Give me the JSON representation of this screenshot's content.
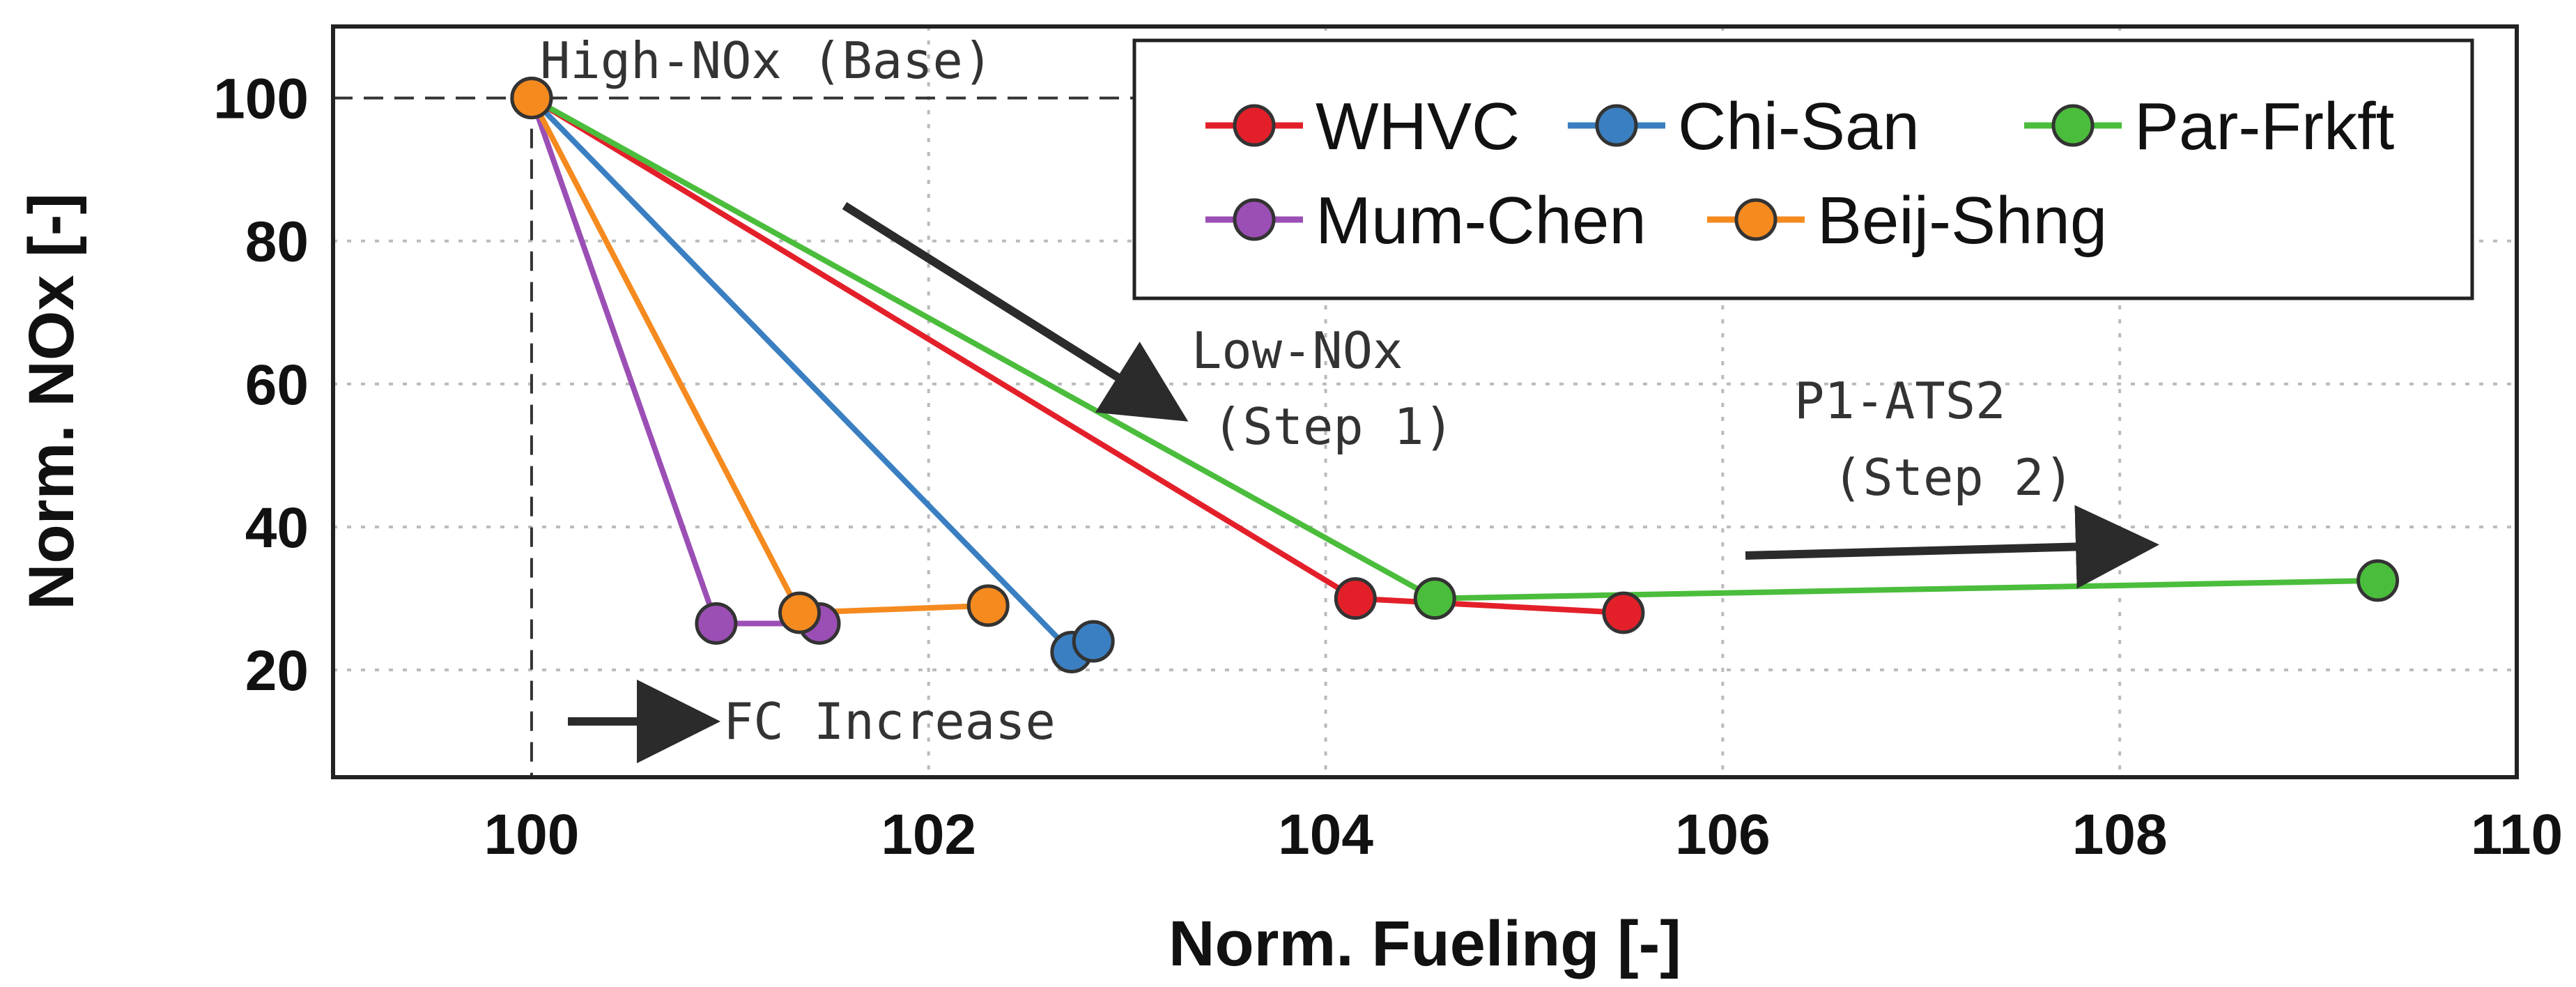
{
  "chart_data": {
    "type": "line",
    "title": "",
    "xlabel": "Norm. Fueling [-]",
    "ylabel": "Norm. NOx [-]",
    "xlim": [
      99,
      110
    ],
    "ylim": [
      5,
      110
    ],
    "xticks": [
      100,
      102,
      104,
      106,
      108,
      110
    ],
    "yticks": [
      20,
      40,
      60,
      80,
      100
    ],
    "grid": true,
    "legend_position": "top-right",
    "series": [
      {
        "name": "WHVC",
        "color": "#e3202a",
        "x": [
          100.0,
          104.15,
          105.5
        ],
        "y": [
          100,
          30,
          28
        ]
      },
      {
        "name": "Chi-San",
        "color": "#3a7fc1",
        "x": [
          100.0,
          102.72,
          102.83
        ],
        "y": [
          100,
          22.5,
          24
        ]
      },
      {
        "name": "Par-Frkft",
        "color": "#4bbd3c",
        "x": [
          100.0,
          104.55,
          109.3
        ],
        "y": [
          100,
          30,
          32.5
        ]
      },
      {
        "name": "Mum-Chen",
        "color": "#9b4fb5",
        "x": [
          100.0,
          100.93,
          101.45
        ],
        "y": [
          100,
          26.5,
          26.5
        ]
      },
      {
        "name": "Beij-Shng",
        "color": "#f58a1f",
        "x": [
          100.0,
          101.35,
          102.3
        ],
        "y": [
          100,
          28,
          29
        ]
      }
    ],
    "reference_lines": {
      "x": 100,
      "y": 100
    },
    "annotations": [
      {
        "id": "high",
        "text": "High-NOx (Base)"
      },
      {
        "id": "low1",
        "text": "Low-NOx"
      },
      {
        "id": "low2",
        "text": "(Step 1)"
      },
      {
        "id": "p1a",
        "text": "P1-ATS2"
      },
      {
        "id": "p1b",
        "text": "(Step 2)"
      },
      {
        "id": "fc",
        "text": "FC Increase"
      }
    ]
  }
}
